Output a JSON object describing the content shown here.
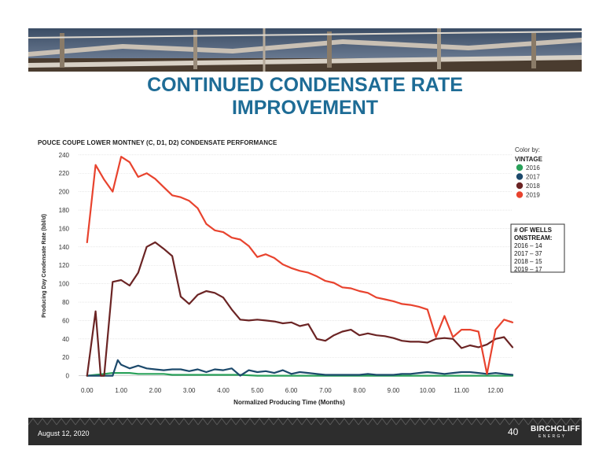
{
  "slide": {
    "title_line1": "CONTINUED CONDENSATE RATE",
    "title_line2": "IMPROVEMENT",
    "footer_date": "August 12, 2020",
    "page_number": "40",
    "logo_name": "BIRCHCLIFF",
    "logo_sub": "ENERGY"
  },
  "chart_data": {
    "type": "line",
    "title": "POUCE COUPE LOWER MONTNEY (C, D1, D2) CONDENSATE PERFORMANCE",
    "xlabel": "Normalized Producing Time (Months)",
    "ylabel": "Producing Day Condensate Rate (bbl/d)",
    "xlim": [
      -0.25,
      12.5
    ],
    "ylim": [
      -8,
      245
    ],
    "x_ticks": [
      "0.00",
      "1.00",
      "2.00",
      "3.00",
      "4.00",
      "5.00",
      "6.00",
      "7.00",
      "8.00",
      "9.00",
      "10.00",
      "11.00",
      "12.00"
    ],
    "y_ticks": [
      "0",
      "20",
      "40",
      "60",
      "80",
      "100",
      "120",
      "140",
      "160",
      "180",
      "200",
      "220",
      "240"
    ],
    "grid": "horizontal",
    "legend": {
      "title_line1": "Color by:",
      "title_line2": "VINTAGE",
      "placement": "right"
    },
    "wells_box": {
      "title_line1": "# OF WELLS",
      "title_line2": "ONSTREAM:",
      "lines": [
        "2016 – 14",
        "2017 – 37",
        "2018 – 15",
        "2019 – 17"
      ]
    },
    "series": [
      {
        "name": "2016",
        "color": "#2aa15a",
        "x": [
          0,
          0.25,
          0.5,
          0.75,
          1,
          1.25,
          1.5,
          1.75,
          2,
          2.25,
          2.5,
          2.75,
          3,
          3.25,
          3.5,
          3.75,
          4,
          4.25,
          4.5,
          5,
          5.5,
          6,
          6.5,
          7,
          7.5,
          8,
          8.5,
          9,
          9.5,
          10,
          10.5,
          11,
          11.5,
          12,
          12.5
        ],
        "y": [
          0,
          1,
          2,
          3,
          3,
          3,
          2,
          2,
          2,
          2,
          1,
          1,
          1,
          1,
          1,
          1,
          1,
          1,
          1,
          0,
          0,
          0,
          0,
          0,
          0,
          0,
          0,
          0,
          0,
          0,
          0,
          0,
          0,
          0,
          0
        ]
      },
      {
        "name": "2017",
        "color": "#1d4a6c",
        "x": [
          0,
          0.25,
          0.5,
          0.75,
          0.9,
          1,
          1.25,
          1.5,
          1.75,
          2,
          2.25,
          2.5,
          2.75,
          3,
          3.25,
          3.5,
          3.75,
          4,
          4.25,
          4.5,
          4.75,
          5,
          5.25,
          5.5,
          5.75,
          6,
          6.25,
          6.5,
          6.75,
          7,
          7.25,
          7.5,
          7.75,
          8,
          8.25,
          8.5,
          8.75,
          9,
          9.25,
          9.5,
          9.75,
          10,
          10.25,
          10.5,
          10.75,
          11,
          11.25,
          11.5,
          11.75,
          12,
          12.25,
          12.5
        ],
        "y": [
          0,
          0,
          0,
          0,
          17,
          12,
          8,
          11,
          8,
          7,
          6,
          7,
          7,
          5,
          7,
          4,
          7,
          6,
          8,
          0,
          6,
          4,
          5,
          3,
          6,
          2,
          4,
          3,
          2,
          1,
          1,
          1,
          1,
          1,
          2,
          1,
          1,
          1,
          2,
          2,
          3,
          4,
          3,
          2,
          3,
          4,
          4,
          3,
          2,
          3,
          2,
          1
        ]
      },
      {
        "name": "2018",
        "color": "#6b2424",
        "x": [
          0,
          0.25,
          0.4,
          0.5,
          0.75,
          1,
          1.25,
          1.5,
          1.75,
          2,
          2.25,
          2.5,
          2.75,
          3,
          3.25,
          3.5,
          3.75,
          4,
          4.25,
          4.5,
          4.75,
          5,
          5.25,
          5.5,
          5.75,
          6,
          6.25,
          6.5,
          6.75,
          7,
          7.25,
          7.5,
          7.75,
          8,
          8.25,
          8.5,
          8.75,
          9,
          9.25,
          9.5,
          9.75,
          10,
          10.25,
          10.5,
          10.75,
          11,
          11.25,
          11.5,
          11.75,
          12,
          12.25,
          12.5
        ],
        "y": [
          0,
          70,
          0,
          0,
          102,
          104,
          98,
          112,
          140,
          145,
          138,
          130,
          86,
          78,
          88,
          92,
          90,
          85,
          72,
          61,
          60,
          61,
          60,
          59,
          57,
          58,
          54,
          56,
          40,
          38,
          44,
          48,
          50,
          44,
          46,
          44,
          43,
          41,
          38,
          37,
          37,
          36,
          40,
          41,
          40,
          30,
          33,
          31,
          34,
          40,
          42,
          31
        ]
      },
      {
        "name": "2019",
        "color": "#e8432e",
        "x": [
          0,
          0.25,
          0.5,
          0.75,
          1,
          1.25,
          1.5,
          1.75,
          2,
          2.25,
          2.5,
          2.75,
          3,
          3.25,
          3.5,
          3.75,
          4,
          4.25,
          4.5,
          4.75,
          5,
          5.25,
          5.5,
          5.75,
          6,
          6.25,
          6.5,
          6.75,
          7,
          7.25,
          7.5,
          7.75,
          8,
          8.25,
          8.5,
          8.75,
          9,
          9.25,
          9.5,
          9.75,
          10,
          10.25,
          10.5,
          10.75,
          11,
          11.25,
          11.5,
          11.75,
          12,
          12.25,
          12.5
        ],
        "y": [
          145,
          229,
          213,
          200,
          238,
          232,
          216,
          220,
          214,
          205,
          196,
          194,
          190,
          182,
          165,
          158,
          156,
          150,
          148,
          141,
          129,
          132,
          128,
          121,
          117,
          114,
          112,
          108,
          103,
          101,
          96,
          95,
          92,
          90,
          85,
          83,
          81,
          78,
          77,
          75,
          72,
          42,
          65,
          42,
          50,
          50,
          48,
          2,
          50,
          61,
          58
        ]
      }
    ]
  }
}
